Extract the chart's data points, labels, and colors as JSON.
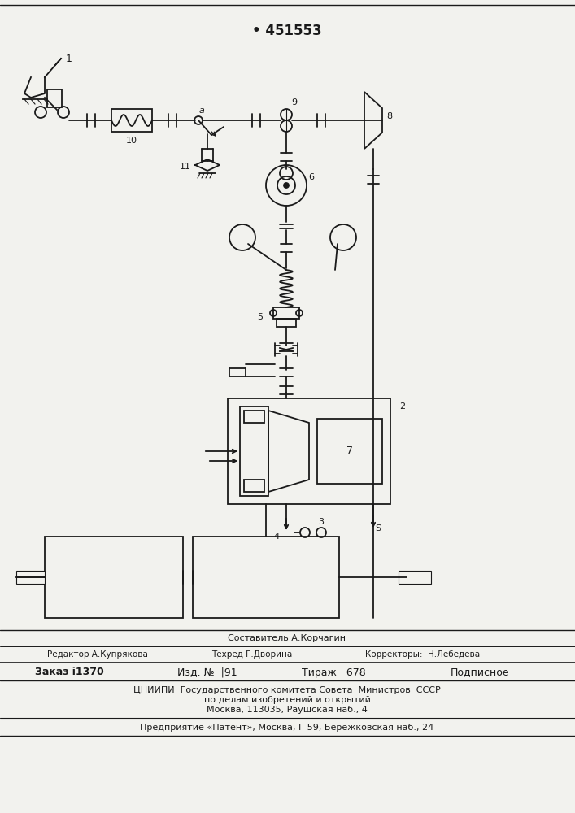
{
  "patent_number": "• 451553",
  "bg_color": "#f2f2ee",
  "line_color": "#1a1a1a",
  "footer": {
    "composer": "Составитель А.Корчагин",
    "editor": "Редактор А.Купрякова",
    "techred": "Техред Г.Дворина",
    "correctors": "Корректоры:  Н.Лебедева",
    "order": "Заказ ⅰ1370",
    "issue": "Изд. №  |91",
    "edition": "Тираж   678",
    "subscription": "Подписное",
    "org1": "ЦНИИПИ  Государственного комитета Совета  Министров  СССР",
    "org2": "по делам изобретений и открытий",
    "org3": "Москва, 113035, Раушская наб., 4",
    "enterprise": "Предприятие «Патент», Москва, Г-59, Бережковская наб., 24"
  }
}
